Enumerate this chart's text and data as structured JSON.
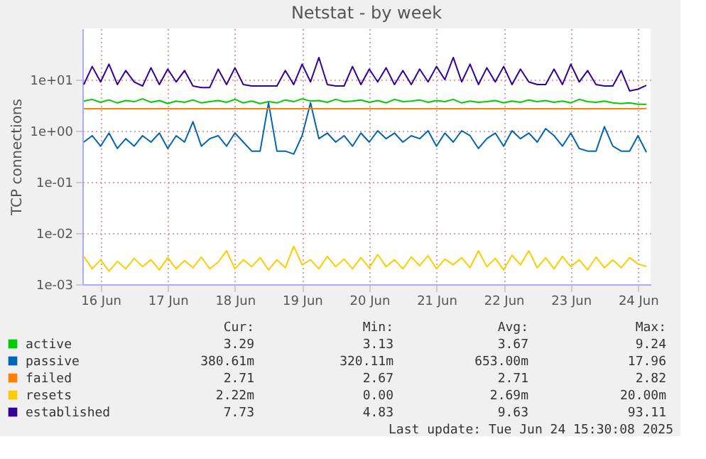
{
  "chart_data": {
    "type": "line",
    "title": "Netstat - by week",
    "ylabel": "TCP connections",
    "log": "y",
    "grid": true,
    "legend": "bottom",
    "line_style": "solid",
    "ylim": [
      0.001,
      100
    ],
    "yticks": [
      {
        "value": 0.001,
        "label": "1e-03"
      },
      {
        "value": 0.01,
        "label": "1e-02"
      },
      {
        "value": 0.1,
        "label": "1e-01"
      },
      {
        "value": 1,
        "label": "1e+00"
      },
      {
        "value": 10,
        "label": "1e+01"
      }
    ],
    "xlim": [
      "2025-06-15T17:30",
      "2025-06-24T04:30"
    ],
    "xticks": [
      {
        "value": "2025-06-16T00:00",
        "label": "16 Jun"
      },
      {
        "value": "2025-06-17T00:00",
        "label": "17 Jun"
      },
      {
        "value": "2025-06-18T00:00",
        "label": "18 Jun"
      },
      {
        "value": "2025-06-19T00:00",
        "label": "19 Jun"
      },
      {
        "value": "2025-06-20T00:00",
        "label": "20 Jun"
      },
      {
        "value": "2025-06-21T00:00",
        "label": "21 Jun"
      },
      {
        "value": "2025-06-22T00:00",
        "label": "22 Jun"
      },
      {
        "value": "2025-06-23T00:00",
        "label": "23 Jun"
      },
      {
        "value": "2025-06-24T00:00",
        "label": "24 Jun"
      }
    ],
    "x": [
      "2025-06-15T18:00",
      "2025-06-15T21:00",
      "2025-06-16T00:00",
      "2025-06-16T03:00",
      "2025-06-16T06:00",
      "2025-06-16T09:00",
      "2025-06-16T12:00",
      "2025-06-16T15:00",
      "2025-06-16T18:00",
      "2025-06-16T21:00",
      "2025-06-17T00:00",
      "2025-06-17T03:00",
      "2025-06-17T06:00",
      "2025-06-17T09:00",
      "2025-06-17T12:00",
      "2025-06-17T15:00",
      "2025-06-17T18:00",
      "2025-06-17T21:00",
      "2025-06-18T00:00",
      "2025-06-18T03:00",
      "2025-06-18T06:00",
      "2025-06-18T09:00",
      "2025-06-18T12:00",
      "2025-06-18T15:00",
      "2025-06-18T18:00",
      "2025-06-18T21:00",
      "2025-06-19T00:00",
      "2025-06-19T03:00",
      "2025-06-19T06:00",
      "2025-06-19T09:00",
      "2025-06-19T12:00",
      "2025-06-19T15:00",
      "2025-06-19T18:00",
      "2025-06-19T21:00",
      "2025-06-20T00:00",
      "2025-06-20T03:00",
      "2025-06-20T06:00",
      "2025-06-20T09:00",
      "2025-06-20T12:00",
      "2025-06-20T15:00",
      "2025-06-20T18:00",
      "2025-06-20T21:00",
      "2025-06-21T00:00",
      "2025-06-21T03:00",
      "2025-06-21T06:00",
      "2025-06-21T09:00",
      "2025-06-21T12:00",
      "2025-06-21T15:00",
      "2025-06-21T18:00",
      "2025-06-21T21:00",
      "2025-06-22T00:00",
      "2025-06-22T03:00",
      "2025-06-22T06:00",
      "2025-06-22T09:00",
      "2025-06-22T12:00",
      "2025-06-22T15:00",
      "2025-06-22T18:00",
      "2025-06-22T21:00",
      "2025-06-23T00:00",
      "2025-06-23T03:00",
      "2025-06-23T06:00",
      "2025-06-23T09:00",
      "2025-06-23T12:00",
      "2025-06-23T15:00",
      "2025-06-23T18:00",
      "2025-06-23T21:00",
      "2025-06-24T00:00",
      "2025-06-24T03:00"
    ],
    "series": [
      {
        "name": "active",
        "color": "#00cc00",
        "values": [
          3.8,
          4.1,
          3.6,
          4.0,
          3.5,
          3.9,
          3.7,
          4.2,
          3.6,
          3.9,
          3.4,
          3.8,
          3.6,
          4.0,
          3.5,
          3.7,
          3.9,
          3.6,
          4.1,
          3.5,
          3.8,
          3.4,
          3.7,
          3.5,
          4.0,
          3.7,
          4.2,
          3.8,
          3.9,
          3.6,
          4.1,
          3.7,
          3.8,
          4.0,
          3.6,
          3.9,
          3.5,
          4.1,
          3.7,
          3.8,
          4.0,
          3.6,
          3.9,
          3.7,
          4.1,
          3.5,
          3.8,
          3.6,
          3.7,
          3.9,
          3.5,
          3.8,
          3.6,
          4.0,
          3.7,
          3.9,
          3.6,
          3.8,
          3.5,
          4.1,
          3.7,
          3.6,
          3.8,
          3.5,
          3.4,
          3.5,
          3.3,
          3.29
        ]
      },
      {
        "name": "passive",
        "color": "#0066b3",
        "values": [
          0.6,
          0.8,
          0.5,
          0.9,
          0.45,
          0.7,
          0.5,
          0.8,
          0.6,
          0.9,
          0.45,
          0.8,
          0.6,
          1.5,
          0.5,
          0.7,
          0.8,
          0.5,
          0.9,
          0.6,
          0.4,
          0.4,
          3.5,
          0.4,
          0.4,
          0.35,
          0.8,
          3.5,
          0.7,
          0.9,
          0.6,
          0.8,
          0.5,
          0.9,
          0.6,
          1.0,
          0.7,
          0.9,
          0.6,
          0.8,
          0.7,
          1.0,
          0.5,
          0.9,
          0.6,
          1.0,
          0.8,
          0.45,
          0.7,
          0.9,
          0.5,
          1.0,
          0.7,
          0.9,
          0.6,
          1.1,
          0.8,
          0.5,
          0.9,
          0.45,
          0.4,
          0.4,
          1.2,
          0.5,
          0.4,
          0.4,
          0.8,
          0.38
        ]
      },
      {
        "name": "failed",
        "color": "#ff8000",
        "values": [
          2.7,
          2.7,
          2.7,
          2.7,
          2.7,
          2.7,
          2.7,
          2.7,
          2.7,
          2.7,
          2.7,
          2.7,
          2.7,
          2.7,
          2.7,
          2.7,
          2.7,
          2.7,
          2.7,
          2.7,
          2.7,
          2.7,
          2.7,
          2.7,
          2.7,
          2.7,
          2.7,
          2.7,
          2.7,
          2.7,
          2.7,
          2.7,
          2.7,
          2.7,
          2.7,
          2.7,
          2.7,
          2.7,
          2.7,
          2.7,
          2.7,
          2.7,
          2.7,
          2.7,
          2.7,
          2.7,
          2.7,
          2.7,
          2.7,
          2.7,
          2.7,
          2.7,
          2.7,
          2.7,
          2.7,
          2.7,
          2.7,
          2.7,
          2.7,
          2.7,
          2.7,
          2.7,
          2.7,
          2.7,
          2.7,
          2.7,
          2.7,
          2.71
        ]
      },
      {
        "name": "resets",
        "color": "#ffcc00",
        "values": [
          0.0035,
          0.002,
          0.003,
          0.0018,
          0.0028,
          0.002,
          0.0032,
          0.0022,
          0.003,
          0.0019,
          0.0033,
          0.002,
          0.0029,
          0.0021,
          0.0034,
          0.002,
          0.0027,
          0.0045,
          0.002,
          0.003,
          0.0022,
          0.0033,
          0.0019,
          0.003,
          0.0021,
          0.0055,
          0.0024,
          0.003,
          0.002,
          0.0035,
          0.0022,
          0.0031,
          0.002,
          0.0033,
          0.0021,
          0.0038,
          0.0022,
          0.003,
          0.002,
          0.0034,
          0.0023,
          0.0036,
          0.002,
          0.0031,
          0.0024,
          0.0033,
          0.0021,
          0.0045,
          0.0022,
          0.0032,
          0.0019,
          0.0037,
          0.0024,
          0.0045,
          0.0021,
          0.0033,
          0.002,
          0.0035,
          0.0022,
          0.003,
          0.0019,
          0.0034,
          0.0021,
          0.003,
          0.0021,
          0.0033,
          0.0025,
          0.00222
        ]
      },
      {
        "name": "established",
        "color": "#330099",
        "values": [
          8,
          18,
          9,
          20,
          8,
          15,
          9,
          7.5,
          17,
          8,
          16,
          9,
          15,
          7.5,
          7,
          7,
          16,
          8,
          17,
          8,
          7.5,
          7.5,
          7.5,
          7.5,
          15,
          8,
          20,
          9,
          27,
          8,
          7.5,
          7.5,
          18,
          8,
          16,
          9,
          17,
          8,
          15,
          8,
          16,
          9,
          18,
          10,
          27,
          9,
          20,
          8,
          17,
          9,
          18,
          8,
          16,
          9,
          8,
          8,
          16,
          8,
          20,
          9,
          15,
          8,
          7.5,
          7.5,
          15,
          6,
          6.5,
          7.73
        ]
      }
    ],
    "annotations": [
      "Cur:",
      "Min:",
      "Avg:",
      "Max:",
      "3.29",
      "3.13",
      "3.67",
      "9.24",
      "380.61m",
      "320.11m",
      "653.00m",
      "17.96",
      "2.71",
      "2.67",
      "2.71",
      "2.82",
      "2.22m",
      "0.00",
      "2.69m",
      "20.00m",
      "7.73",
      "4.83",
      "9.63",
      "93.11",
      "Last update: Tue Jun 24 15:30:08 2025"
    ]
  }
}
